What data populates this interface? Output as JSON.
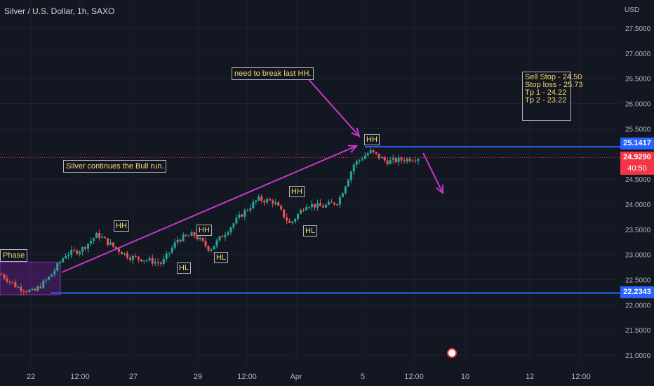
{
  "header": {
    "title": "Silver / U.S. Dollar, 1h, SAXO"
  },
  "axis": {
    "currency": "USD",
    "y_ticks": [
      "27.5000",
      "27.0000",
      "26.5000",
      "26.0000",
      "25.5000",
      "25.0000",
      "24.5000",
      "24.0000",
      "23.5000",
      "23.0000",
      "22.5000",
      "22.0000",
      "21.5000",
      "21.0000"
    ],
    "x_ticks": [
      "22",
      "12:00",
      "27",
      "29",
      "12:00",
      "Apr",
      "5",
      "12:00",
      "10",
      "12",
      "12:00"
    ]
  },
  "price_labels": {
    "resistance": "25.1417",
    "current": "24.9290",
    "countdown": "40:50",
    "support": "22.2343"
  },
  "annotations": {
    "phase": "Phase",
    "break_note": "need to break last HH.",
    "bull_note": "Silver continues the Bull run.",
    "swing_labels": [
      "HH",
      "HL",
      "HH",
      "HL",
      "HH",
      "HL",
      "HH"
    ]
  },
  "trade_plan": {
    "sell_stop": "Sell Stop - 24.50",
    "stop_loss": "Stop loss - 25.73",
    "tp1": "Tp 1 - 24.22",
    "tp2": "Tp 2 - 23.22"
  },
  "colors": {
    "background": "#131722",
    "up": "#26a69a",
    "down": "#ef5350",
    "level_line": "#2962ff",
    "arrow": "#c837c8",
    "current_price": "#f23645"
  },
  "chart_data": {
    "type": "candlestick",
    "title": "Silver / U.S. Dollar, 1h, SAXO",
    "ylim": [
      20.85,
      27.8
    ],
    "y_ticks": [
      27.5,
      27.0,
      26.5,
      26.0,
      25.5,
      25.0,
      24.5,
      24.0,
      23.5,
      23.0,
      22.5,
      22.0,
      21.5,
      21.0
    ],
    "x_ticks": [
      "22",
      "12:00",
      "27",
      "29",
      "12:00",
      "Apr",
      "5",
      "12:00",
      "10",
      "12",
      "12:00"
    ],
    "close_path": [
      {
        "t": "22",
        "close": 22.6
      },
      {
        "t": "22",
        "close": 22.35
      },
      {
        "t": "22 12:00",
        "close": 22.25
      },
      {
        "t": "23",
        "close": 22.55
      },
      {
        "t": "23",
        "close": 23.0
      },
      {
        "t": "24",
        "close": 23.1
      },
      {
        "t": "26",
        "close": 23.4
      },
      {
        "t": "26",
        "close": 23.15
      },
      {
        "t": "27",
        "close": 22.95
      },
      {
        "t": "28",
        "close": 22.9
      },
      {
        "t": "28",
        "close": 22.82
      },
      {
        "t": "28",
        "close": 23.3
      },
      {
        "t": "29",
        "close": 23.4
      },
      {
        "t": "29",
        "close": 23.1
      },
      {
        "t": "29 12:00",
        "close": 23.45
      },
      {
        "t": "30",
        "close": 23.8
      },
      {
        "t": "31",
        "close": 24.1
      },
      {
        "t": "Apr",
        "close": 24.05
      },
      {
        "t": "Apr",
        "close": 23.6
      },
      {
        "t": "2",
        "close": 24.0
      },
      {
        "t": "3",
        "close": 23.95
      },
      {
        "t": "4",
        "close": 24.05
      },
      {
        "t": "4",
        "close": 24.8
      },
      {
        "t": "5",
        "close": 25.05
      },
      {
        "t": "5",
        "close": 24.85
      },
      {
        "t": "5 12:00",
        "close": 24.88
      },
      {
        "t": "5 12:00",
        "close": 24.93
      }
    ],
    "levels": [
      25.1417,
      22.2343
    ],
    "current_price": 24.929,
    "consolidation_zone": {
      "label": "Phase",
      "from": 22.2,
      "to": 22.85
    },
    "swing_points": [
      {
        "label": "HH",
        "price": 23.45
      },
      {
        "label": "HL",
        "price": 22.82
      },
      {
        "label": "HH",
        "price": 23.4
      },
      {
        "label": "HL",
        "price": 23.05
      },
      {
        "label": "HH",
        "price": 24.1
      },
      {
        "label": "HL",
        "price": 23.6
      },
      {
        "label": "HH",
        "price": 25.12
      }
    ]
  }
}
